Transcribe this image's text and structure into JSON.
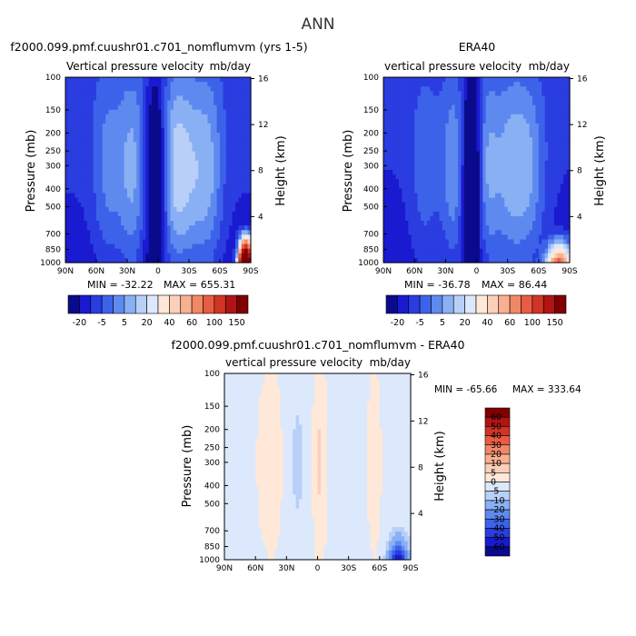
{
  "figure": {
    "title": "ANN"
  },
  "colors": {
    "neg": [
      "#0a0a8c",
      "#1a1ad0",
      "#2a3de0",
      "#3d62ea",
      "#5e8af0",
      "#8ab0f4",
      "#b8d0f8",
      "#dce8fc"
    ],
    "pos": [
      "#ffe8d8",
      "#fcd0b8",
      "#f8b090",
      "#f08868",
      "#e85c42",
      "#d03424",
      "#b01414",
      "#800000"
    ],
    "bad": "#ffffff"
  },
  "chart_data": [
    {
      "type": "heatmap",
      "title": "f2000.099.pmf.cuushr01.c701_nomflumvm (yrs 1-5)",
      "subtitle_left": "Vertical pressure velocity",
      "subtitle_right": "mb/day",
      "ylabel": "Pressure (mb)",
      "ylabel_right": "Height (km)",
      "x_ticks": [
        "90N",
        "60N",
        "30N",
        "0",
        "30S",
        "60S",
        "90S"
      ],
      "y_ticks": [
        "100",
        "150",
        "200",
        "250",
        "300",
        "400",
        "500",
        "700",
        "850",
        "1000"
      ],
      "y_right_ticks": [
        "16",
        "12",
        "8",
        "4"
      ],
      "min_label": "MIN = -32.22",
      "max_label": "MAX = 655.31",
      "colorbar": {
        "labels": [
          "-20",
          "-5",
          "5",
          "20",
          "40",
          "60",
          "100",
          "150"
        ],
        "levels": [
          -25,
          -20,
          -15,
          -10,
          -5,
          0,
          5,
          10,
          20,
          30,
          40,
          50,
          60,
          80,
          100,
          125,
          150
        ],
        "colors": [
          "#0a0a8c",
          "#1a1ad0",
          "#2a3de0",
          "#3d62ea",
          "#5e8af0",
          "#8ab0f4",
          "#b8d0f8",
          "#dce8fc",
          "#ffe8d8",
          "#fcd0b8",
          "#f8b090",
          "#f08868",
          "#e85c42",
          "#d03424",
          "#b01414",
          "#800000"
        ]
      },
      "field": {
        "base": -13,
        "features": [
          {
            "lat": 3,
            "w": 7,
            "amp": -14
          },
          {
            "lat": -15,
            "w": 9,
            "amp": 10
          },
          {
            "lat": 25,
            "w": 11,
            "amp": 11
          },
          {
            "lat": 50,
            "w": 10,
            "amp": 7
          },
          {
            "lat": -50,
            "w": 10,
            "amp": 9
          },
          {
            "lat": -30,
            "w": 12,
            "amp": 11
          }
        ],
        "lower_boost": 1.4,
        "hotspot": {
          "lat": -85,
          "w": 4,
          "amp": 300
        }
      }
    },
    {
      "type": "heatmap",
      "title": "ERA40",
      "subtitle_left": "vertical pressure velocity",
      "subtitle_right": "mb/day",
      "ylabel": "Pressure (mb)",
      "ylabel_right": "Height (km)",
      "x_ticks": [
        "90N",
        "60N",
        "30N",
        "0",
        "30S",
        "60S",
        "90S"
      ],
      "y_ticks": [
        "100",
        "150",
        "200",
        "250",
        "300",
        "400",
        "500",
        "700",
        "850",
        "1000"
      ],
      "y_right_ticks": [
        "16",
        "12",
        "8",
        "4"
      ],
      "min_label": "MIN = -36.78",
      "max_label": "MAX =  86.44",
      "colorbar": {
        "labels": [
          "-20",
          "-5",
          "5",
          "20",
          "40",
          "60",
          "100",
          "150"
        ],
        "levels": [
          -25,
          -20,
          -15,
          -10,
          -5,
          0,
          5,
          10,
          20,
          30,
          40,
          50,
          60,
          80,
          100,
          125,
          150
        ],
        "colors": [
          "#0a0a8c",
          "#1a1ad0",
          "#2a3de0",
          "#3d62ea",
          "#5e8af0",
          "#8ab0f4",
          "#b8d0f8",
          "#dce8fc",
          "#ffe8d8",
          "#fcd0b8",
          "#f8b090",
          "#f08868",
          "#e85c42",
          "#d03424",
          "#b01414",
          "#800000"
        ]
      },
      "field": {
        "base": -14,
        "features": [
          {
            "lat": 5,
            "w": 6,
            "amp": -18
          },
          {
            "lat": -10,
            "w": 8,
            "amp": 9
          },
          {
            "lat": 22,
            "w": 9,
            "amp": 10
          },
          {
            "lat": 50,
            "w": 10,
            "amp": 6
          },
          {
            "lat": -50,
            "w": 12,
            "amp": 10
          },
          {
            "lat": -30,
            "w": 12,
            "amp": 10
          }
        ],
        "lower_boost": 1.3,
        "hotspot": {
          "lat": -80,
          "w": 8,
          "amp": 90
        }
      }
    },
    {
      "type": "heatmap",
      "title": "f2000.099.pmf.cuushr01.c701_nomflumvm - ERA40",
      "subtitle_left": "vertical pressure velocity",
      "subtitle_right": "mb/day",
      "ylabel": "Pressure (mb)",
      "ylabel_right": "Height (km)",
      "x_ticks": [
        "90N",
        "60N",
        "30N",
        "0",
        "30S",
        "60S",
        "90S"
      ],
      "y_ticks": [
        "100",
        "150",
        "200",
        "250",
        "300",
        "400",
        "500",
        "700",
        "850",
        "1000"
      ],
      "y_right_ticks": [
        "16",
        "12",
        "8",
        "4"
      ],
      "min_label": "MIN = -65.66",
      "max_label": "MAX = 333.64",
      "colorbar": {
        "labels": [
          "60",
          "50",
          "40",
          "30",
          "20",
          "10",
          "5",
          "0",
          "-5",
          "-10",
          "-20",
          "-30",
          "-40",
          "-50",
          "-60"
        ],
        "levels": [
          -70,
          -60,
          -50,
          -40,
          -30,
          -20,
          -10,
          -5,
          0,
          5,
          10,
          20,
          30,
          40,
          50,
          60,
          70
        ],
        "colors": [
          "#0a0a8c",
          "#1a1ad0",
          "#2a3de0",
          "#3d62ea",
          "#5e8af0",
          "#8ab0f4",
          "#b8d0f8",
          "#dce8fc",
          "#ffe8d8",
          "#fcd0b8",
          "#f8b090",
          "#f08868",
          "#e85c42",
          "#d03424",
          "#b01414",
          "#800000"
        ]
      },
      "field": {
        "base": -2,
        "features": [
          {
            "lat": -2,
            "w": 5,
            "amp": 6
          },
          {
            "lat": 45,
            "w": 10,
            "amp": 4
          },
          {
            "lat": -55,
            "w": 5,
            "amp": 4
          },
          {
            "lat": 20,
            "w": 8,
            "amp": -3
          }
        ],
        "lower_boost": 1.0,
        "hotspot": {
          "lat": -78,
          "w": 6,
          "amp": -60
        }
      }
    }
  ]
}
